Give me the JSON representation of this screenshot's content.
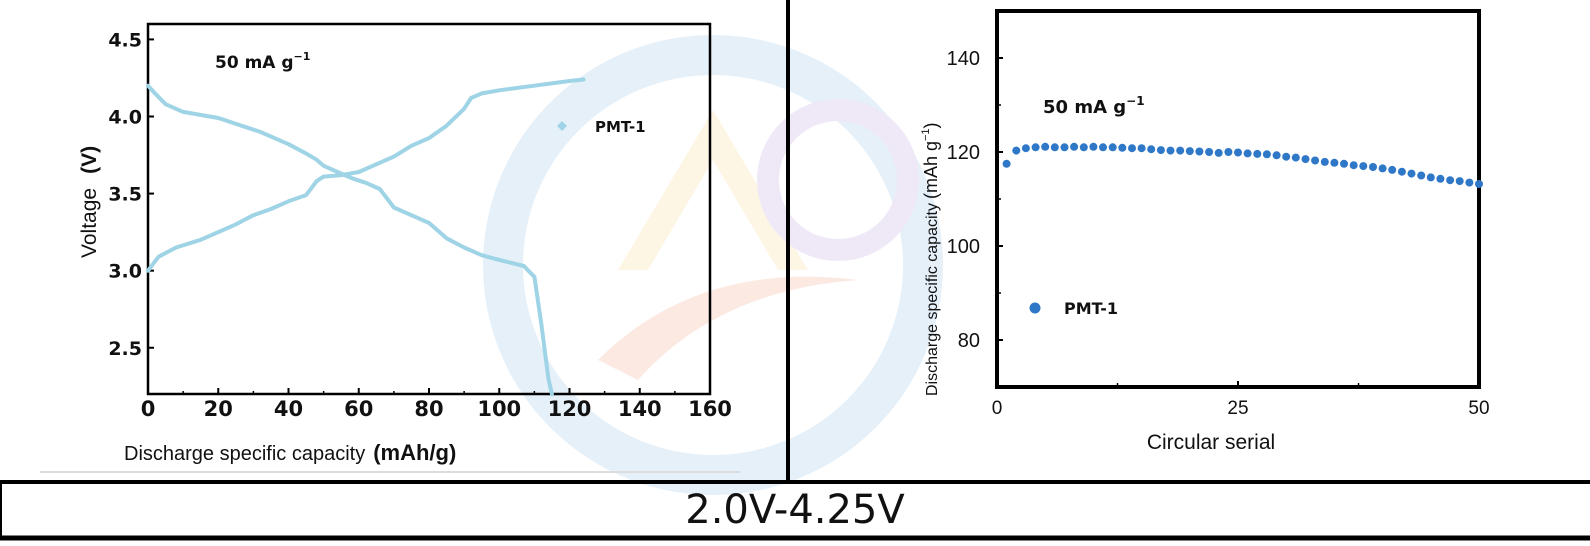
{
  "chart_data": [
    {
      "type": "line",
      "annotation": "50 mA g",
      "annotation_superscript": "−1",
      "xlabel": "Discharge specific capacity",
      "xlabel_unit": "(mAh/g)",
      "ylabel": "Voltage",
      "ylabel_unit": "(V)",
      "xlim": [
        0,
        160
      ],
      "ylim": [
        2.2,
        4.6
      ],
      "xticks": [
        "0",
        "20",
        "40",
        "60",
        "80",
        "100",
        "120",
        "140",
        "160"
      ],
      "yticks": [
        "2.5",
        "3.0",
        "3.5",
        "4.0",
        "4.5"
      ],
      "legend": "PMT-1",
      "legend_position": "upper-right",
      "color": "#9ed4e6",
      "series": [
        {
          "name": "PMT-1",
          "segments": [
            {
              "x": [
                0,
                2,
                5,
                10,
                20,
                28,
                32,
                40,
                45,
                48,
                50,
                54,
                58,
                62,
                66,
                70,
                80,
                85,
                90,
                95,
                100,
                107,
                110,
                112,
                114,
                115
              ],
              "y": [
                4.2,
                4.15,
                4.08,
                4.03,
                3.99,
                3.93,
                3.9,
                3.82,
                3.76,
                3.72,
                3.68,
                3.64,
                3.6,
                3.57,
                3.53,
                3.41,
                3.31,
                3.21,
                3.15,
                3.1,
                3.07,
                3.03,
                2.96,
                2.65,
                2.3,
                2.2
              ]
            },
            {
              "x": [
                0,
                3,
                8,
                15,
                25,
                30,
                35,
                40,
                45,
                48,
                50,
                55,
                60,
                65,
                70,
                75,
                80,
                85,
                90,
                92,
                95,
                100,
                110,
                120,
                124
              ],
              "y": [
                3.0,
                3.09,
                3.15,
                3.2,
                3.3,
                3.36,
                3.4,
                3.45,
                3.49,
                3.58,
                3.61,
                3.62,
                3.64,
                3.69,
                3.74,
                3.81,
                3.86,
                3.94,
                4.05,
                4.12,
                4.15,
                4.17,
                4.2,
                4.23,
                4.24
              ]
            }
          ]
        }
      ]
    },
    {
      "type": "scatter",
      "annotation": "50 mA g",
      "annotation_superscript": "−1",
      "xlabel": "Circular serial",
      "ylabel": "Discharge specific capacity",
      "ylabel_unit": "(mAh g",
      "ylabel_unit_sup": "−1",
      "ylabel_unit_close": ")",
      "xlim": [
        0,
        50
      ],
      "ylim": [
        70,
        150
      ],
      "xticks": [
        "0",
        "25",
        "50"
      ],
      "yticks": [
        "80",
        "100",
        "120",
        "140"
      ],
      "legend": "PMT-1",
      "legend_position": "lower-left",
      "color": "#2f78c8",
      "series": [
        {
          "name": "PMT-1",
          "x": [
            1,
            2,
            3,
            4,
            5,
            6,
            7,
            8,
            9,
            10,
            11,
            12,
            13,
            14,
            15,
            16,
            17,
            18,
            19,
            20,
            21,
            22,
            23,
            24,
            25,
            26,
            27,
            28,
            29,
            30,
            31,
            32,
            33,
            34,
            35,
            36,
            37,
            38,
            39,
            40,
            41,
            42,
            43,
            44,
            45,
            46,
            47,
            48,
            49,
            50
          ],
          "y": [
            117.5,
            120.3,
            120.8,
            121.0,
            121.1,
            121.0,
            121.0,
            121.1,
            121.0,
            121.1,
            121.0,
            121.0,
            120.9,
            120.8,
            120.8,
            120.6,
            120.4,
            120.3,
            120.3,
            120.2,
            120.1,
            120.0,
            119.8,
            120.0,
            119.9,
            119.7,
            119.6,
            119.5,
            119.3,
            119.0,
            118.8,
            118.5,
            118.2,
            117.9,
            117.7,
            117.5,
            117.2,
            117.0,
            116.8,
            116.5,
            116.2,
            115.8,
            115.4,
            115.0,
            114.6,
            114.3,
            114.0,
            113.8,
            113.5,
            113.2
          ]
        }
      ]
    }
  ],
  "caption": "2.0V-4.25V"
}
